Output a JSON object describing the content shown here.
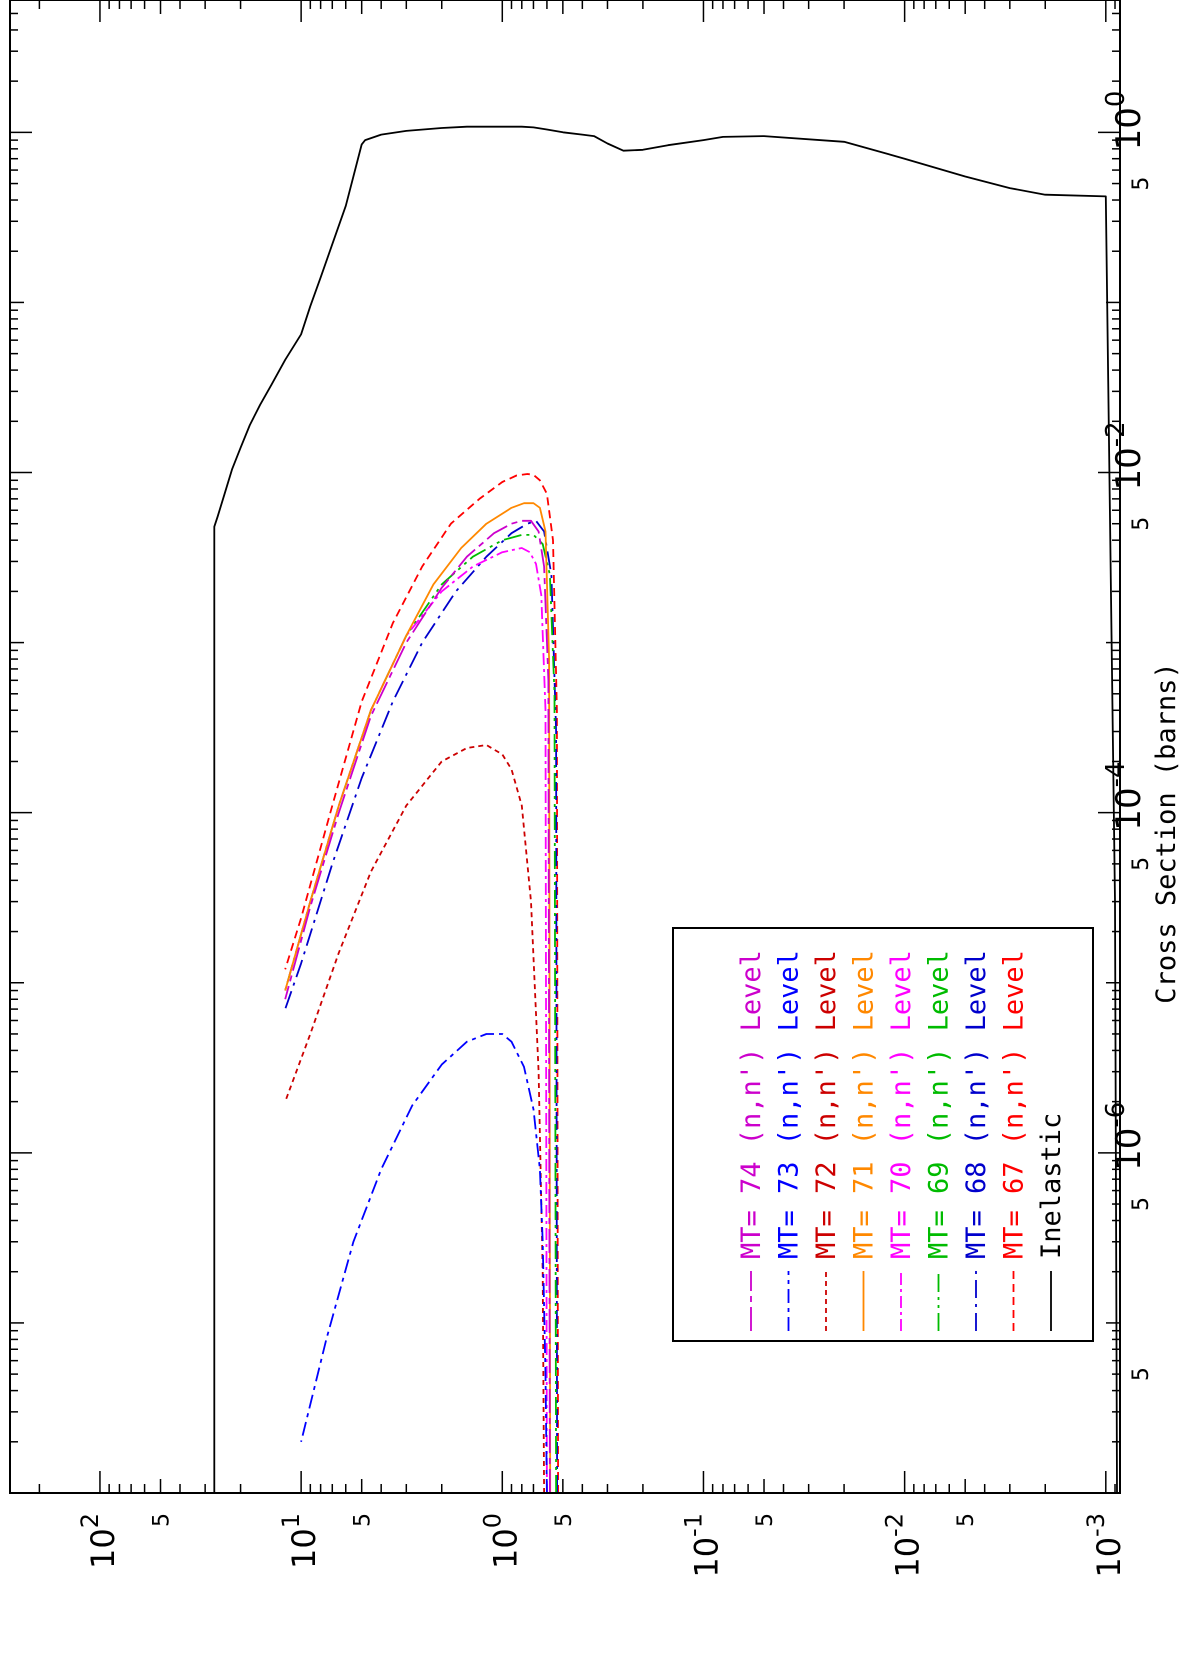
{
  "chart_data": {
    "type": "line",
    "orientation": "rotated-90-clockwise",
    "title": "",
    "xlabel": "",
    "ylabel": "Cross Section (barns)",
    "x_scale": "log",
    "y_scale": "log",
    "xlim": [
      0.00085,
      280
    ],
    "ylim": [
      1e-08,
      6
    ],
    "x_ticks": [
      {
        "value": 0.001,
        "base": "10",
        "exp": "-3"
      },
      {
        "value": 0.005,
        "label": "5"
      },
      {
        "value": 0.01,
        "base": "10",
        "exp": "-2"
      },
      {
        "value": 0.05,
        "label": "5"
      },
      {
        "value": 0.1,
        "base": "10",
        "exp": "-1"
      },
      {
        "value": 0.5,
        "label": "5"
      },
      {
        "value": 1,
        "base": "10",
        "exp": "0"
      },
      {
        "value": 5,
        "label": "5"
      },
      {
        "value": 10,
        "base": "10",
        "exp": "1"
      },
      {
        "value": 50,
        "label": "5"
      },
      {
        "value": 100,
        "base": "10",
        "exp": "2"
      }
    ],
    "y_ticks": [
      {
        "value": 1,
        "base": "10",
        "exp": "0"
      },
      {
        "value": 0.5,
        "label": "5"
      },
      {
        "value": 0.01,
        "base": "10",
        "exp": "-2"
      },
      {
        "value": 0.005,
        "label": "5"
      },
      {
        "value": 0.0001,
        "base": "10",
        "exp": "-4"
      },
      {
        "value": 5e-05,
        "label": "5"
      },
      {
        "value": 1e-06,
        "base": "10",
        "exp": "-6"
      },
      {
        "value": 5e-07,
        "label": "5"
      },
      {
        "value": 5e-08,
        "label": "5"
      }
    ],
    "legend_position": "bottom-left",
    "series": [
      {
        "name": "Inelastic",
        "mt": "",
        "reaction": "",
        "level": "",
        "color": "#000000",
        "dash": "",
        "x": [
          0.00088,
          0.0009,
          0.001,
          0.002,
          0.003,
          0.005,
          0.01,
          0.02,
          0.05,
          0.08,
          0.1,
          0.15,
          0.2,
          0.25,
          0.3,
          0.35,
          0.4,
          0.5,
          0.6,
          0.7,
          0.8,
          0.9,
          1.0,
          1.5,
          2.0,
          3.0,
          4.0,
          4.8,
          5.0,
          5.5,
          6.0,
          7.0,
          8.0,
          9.0,
          10.0,
          12.0,
          14.0,
          16.0,
          18.0,
          20.0,
          22.0,
          24.0,
          26.0,
          27.0,
          27.0
        ],
        "y": [
          1e-08,
          3e-05,
          0.42,
          0.43,
          0.47,
          0.55,
          0.7,
          0.88,
          0.95,
          0.94,
          0.9,
          0.84,
          0.79,
          0.78,
          0.86,
          0.95,
          0.97,
          1.0,
          1.04,
          1.07,
          1.08,
          1.08,
          1.08,
          1.08,
          1.06,
          1.02,
          0.97,
          0.9,
          0.85,
          0.55,
          0.37,
          0.22,
          0.14,
          0.095,
          0.065,
          0.046,
          0.033,
          0.025,
          0.019,
          0.014,
          0.0105,
          0.0075,
          0.0055,
          0.0048,
          1e-08
        ]
      },
      {
        "name": "MT= 67 (n,n') Level",
        "mt": "67",
        "reaction": "(n,n')",
        "level": "Level",
        "color": "#ff0000",
        "dash": "8,5",
        "x": [
          0.528,
          0.535,
          0.56,
          0.6,
          0.65,
          0.7,
          0.75,
          0.85,
          1.0,
          1.3,
          1.8,
          2.5,
          3.5,
          5.0,
          7.0,
          10.0,
          12.0
        ],
        "y": [
          1e-08,
          0.0004,
          0.004,
          0.0075,
          0.009,
          0.0097,
          0.0098,
          0.0096,
          0.0088,
          0.007,
          0.005,
          0.0028,
          0.0013,
          0.00045,
          0.00011,
          2.4e-05,
          1.2e-05
        ]
      },
      {
        "name": "MT= 68 (n,n') Level",
        "mt": "68",
        "reaction": "(n,n')",
        "level": "Level",
        "color": "#0000cc",
        "dash": "18,6,3,6",
        "x": [
          0.534,
          0.54,
          0.57,
          0.62,
          0.68,
          0.75,
          0.9,
          1.2,
          1.7,
          2.5,
          3.5,
          5.0,
          7.0,
          10.0,
          12.0
        ],
        "y": [
          1e-08,
          0.0003,
          0.0025,
          0.0045,
          0.0052,
          0.005,
          0.0044,
          0.0032,
          0.002,
          0.001,
          0.00045,
          0.00016,
          5e-05,
          1.3e-05,
          7e-06
        ]
      },
      {
        "name": "MT= 69 (n,n') Level",
        "mt": "69",
        "reaction": "(n,n')",
        "level": "Level",
        "color": "#00bb00",
        "dash": "18,5,3,5,3,5",
        "x": [
          0.54,
          0.55,
          0.58,
          0.63,
          0.7,
          0.8,
          1.0,
          1.4,
          2.0,
          3.0,
          4.5,
          6.5,
          9.0,
          12.0
        ],
        "y": [
          1e-08,
          0.0005,
          0.0025,
          0.0038,
          0.0043,
          0.0043,
          0.004,
          0.0032,
          0.0022,
          0.0011,
          0.0004,
          0.00011,
          3e-05,
          9e-06
        ]
      },
      {
        "name": "MT= 70 (n,n') Level",
        "mt": "70",
        "reaction": "(n,n')",
        "level": "Level",
        "color": "#ff00ff",
        "dash": "12,4,3,4",
        "x": [
          0.6,
          0.61,
          0.64,
          0.68,
          0.73,
          0.8,
          1.0,
          1.4,
          2.0,
          3.0,
          4.5,
          6.5,
          9.0,
          12.0
        ],
        "y": [
          1e-08,
          0.0004,
          0.0019,
          0.0029,
          0.0034,
          0.0036,
          0.0034,
          0.0028,
          0.002,
          0.0011,
          0.0004,
          0.00011,
          3e-05,
          9e-06
        ]
      },
      {
        "name": "MT= 71 (n,n') Level",
        "mt": "71",
        "reaction": "(n,n')",
        "level": "Level",
        "color": "#ff8800",
        "dash": "",
        "x": [
          0.578,
          0.585,
          0.61,
          0.65,
          0.7,
          0.78,
          0.9,
          1.2,
          1.6,
          2.2,
          3.0,
          4.5,
          6.5,
          9.0,
          12.0
        ],
        "y": [
          1e-08,
          0.0008,
          0.0045,
          0.0062,
          0.0066,
          0.0066,
          0.0062,
          0.005,
          0.0036,
          0.0022,
          0.0011,
          0.0004,
          0.00011,
          3e-05,
          9e-06
        ]
      },
      {
        "name": "MT= 72 (n,n') Level",
        "mt": "72",
        "reaction": "(n,n')",
        "level": "Level",
        "color": "#cc0000",
        "dash": "5,4",
        "x": [
          0.62,
          0.63,
          0.66,
          0.72,
          0.8,
          0.9,
          1.0,
          1.2,
          1.5,
          2.0,
          3.0,
          4.5,
          6.5,
          9.0,
          12.0
        ],
        "y": [
          1e-08,
          2e-07,
          3e-06,
          3e-05,
          0.00011,
          0.00018,
          0.00022,
          0.00025,
          0.00024,
          0.0002,
          0.00011,
          4.5e-05,
          1.5e-05,
          5e-06,
          2e-06
        ]
      },
      {
        "name": "MT= 73 (n,n') Level",
        "mt": "73",
        "reaction": "(n,n')",
        "level": "Level",
        "color": "#0000ff",
        "dash": "14,5,4,5",
        "x": [
          0.6,
          0.61,
          0.63,
          0.65,
          0.7,
          0.78,
          0.9,
          1.0,
          1.2,
          1.5,
          2.0,
          2.8,
          4.0,
          5.5,
          7.5,
          10.0
        ],
        "y": [
          1e-08,
          5e-08,
          3e-07,
          8e-07,
          1.8e-06,
          3.2e-06,
          4.5e-06,
          5e-06,
          5e-06,
          4.5e-06,
          3.3e-06,
          1.9e-06,
          8e-07,
          3e-07,
          8e-08,
          2e-08
        ]
      },
      {
        "name": "MT= 74 (n,n') Level",
        "mt": "74",
        "reaction": "(n,n')",
        "level": "Level",
        "color": "#cc00cc",
        "dash": "24,5,6,5",
        "x": [
          0.58,
          0.59,
          0.62,
          0.66,
          0.72,
          0.8,
          0.9,
          1.1,
          1.5,
          2.0,
          3.0,
          4.5,
          6.5,
          9.0,
          12.0
        ],
        "y": [
          1e-08,
          0.0006,
          0.0028,
          0.0045,
          0.0052,
          0.0052,
          0.005,
          0.0044,
          0.0032,
          0.0021,
          0.001,
          0.00037,
          0.0001,
          2.8e-05,
          8e-06
        ]
      }
    ]
  }
}
